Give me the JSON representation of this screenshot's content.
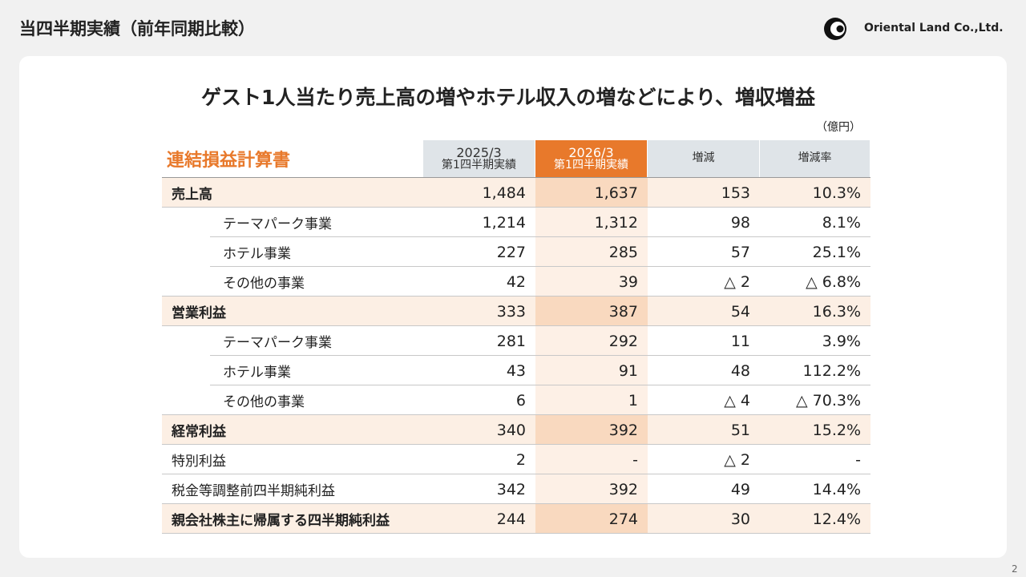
{
  "header": {
    "title": "当四半期実績（前年同期比較）",
    "company": "Oriental Land Co.,Ltd."
  },
  "headline": "ゲスト1人当たり売上高の増やホテル収入の増などにより、増収増益",
  "unit": "（億円）",
  "table": {
    "title": "連結損益計算書",
    "columns": [
      [
        "2025/3",
        "第1四半期実績"
      ],
      [
        "2026/3",
        "第1四半期実績"
      ],
      [
        "増減"
      ],
      [
        "増減率"
      ]
    ],
    "rows": [
      {
        "label": "売上高",
        "cells": [
          "1,484",
          "1,637",
          "153",
          "10.3%"
        ]
      },
      {
        "label": "テーマパーク事業",
        "cells": [
          "1,214",
          "1,312",
          "98",
          "8.1%"
        ]
      },
      {
        "label": "ホテル事業",
        "cells": [
          "227",
          "285",
          "57",
          "25.1%"
        ]
      },
      {
        "label": "その他の事業",
        "cells": [
          "42",
          "39",
          "△ 2",
          "△ 6.8%"
        ]
      },
      {
        "label": "営業利益",
        "cells": [
          "333",
          "387",
          "54",
          "16.3%"
        ]
      },
      {
        "label": "テーマパーク事業",
        "cells": [
          "281",
          "292",
          "11",
          "3.9%"
        ]
      },
      {
        "label": "ホテル事業",
        "cells": [
          "43",
          "91",
          "48",
          "112.2%"
        ]
      },
      {
        "label": "その他の事業",
        "cells": [
          "6",
          "1",
          "△ 4",
          "△ 70.3%"
        ]
      },
      {
        "label": "経常利益",
        "cells": [
          "340",
          "392",
          "51",
          "15.2%"
        ]
      },
      {
        "label": "特別利益",
        "cells": [
          "2",
          "-",
          "△ 2",
          "-"
        ]
      },
      {
        "label": "税金等調整前四半期純利益",
        "cells": [
          "342",
          "392",
          "49",
          "14.4%"
        ]
      },
      {
        "label": "親会社株主に帰属する四半期純利益",
        "cells": [
          "244",
          "274",
          "30",
          "12.4%"
        ]
      }
    ]
  },
  "page": "2"
}
